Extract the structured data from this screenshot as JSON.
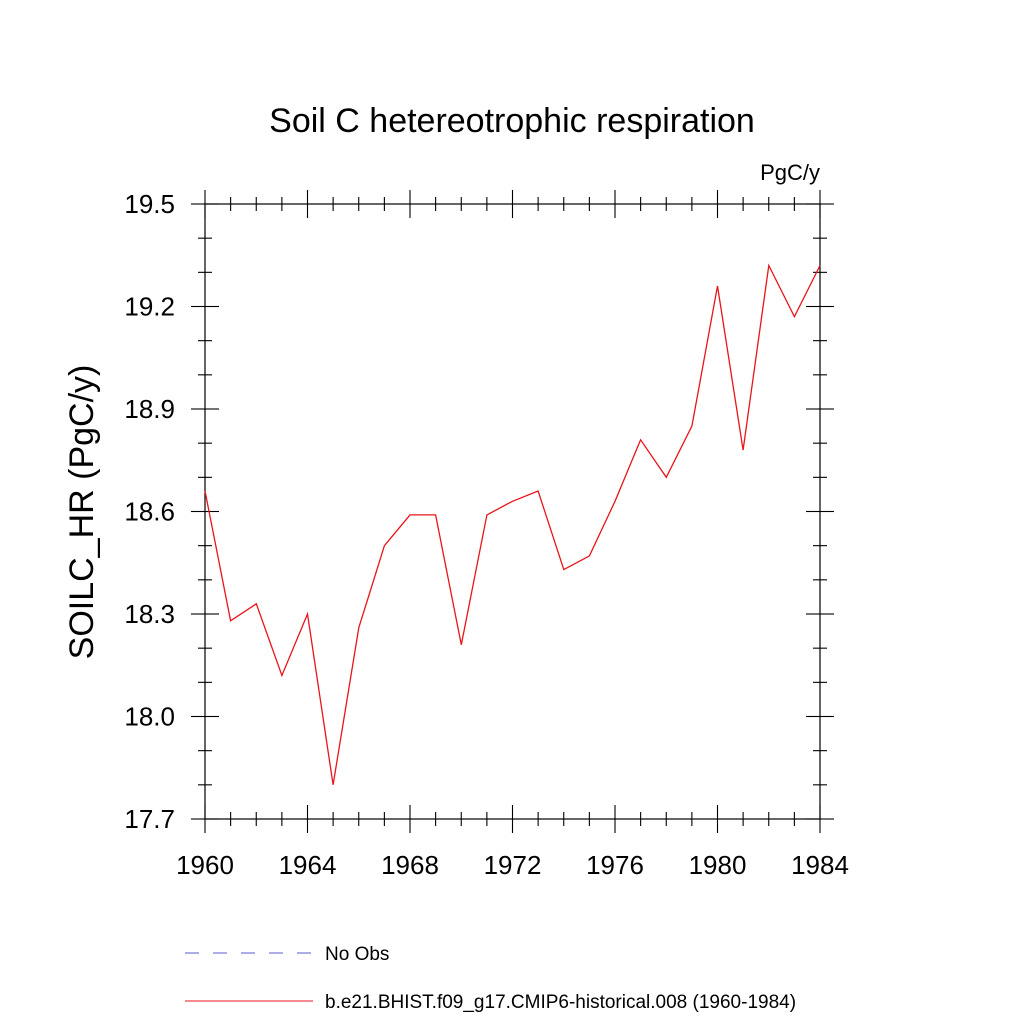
{
  "chart_data": {
    "type": "line",
    "title": "Soil C hetereotrophic respiration",
    "units": "PgC/y",
    "xlabel": "",
    "ylabel": "SOILC_HR  (PgC/y)",
    "xlim": [
      1960,
      1984
    ],
    "ylim": [
      17.7,
      19.5
    ],
    "x_major_ticks": [
      1960,
      1964,
      1968,
      1972,
      1976,
      1980,
      1984
    ],
    "x_minor_step": 1,
    "y_major_ticks": [
      17.7,
      18.0,
      18.3,
      18.6,
      18.9,
      19.2,
      19.5
    ],
    "y_minor_step": 0.1,
    "grid": false,
    "series": [
      {
        "name": "b.e21.BHIST.f09_g17.CMIP6-historical.008 (1960-1984)",
        "color": "#e8151b",
        "style": "solid",
        "x": [
          1960,
          1961,
          1962,
          1963,
          1964,
          1965,
          1966,
          1967,
          1968,
          1969,
          1970,
          1971,
          1972,
          1973,
          1974,
          1975,
          1976,
          1977,
          1978,
          1979,
          1980,
          1981,
          1982,
          1983,
          1984
        ],
        "values": [
          18.66,
          18.28,
          18.33,
          18.12,
          18.3,
          17.8,
          18.26,
          18.5,
          18.59,
          18.59,
          18.21,
          18.59,
          18.63,
          18.66,
          18.43,
          18.47,
          18.63,
          18.81,
          18.7,
          18.85,
          19.26,
          18.78,
          19.32,
          19.17,
          19.32
        ]
      }
    ],
    "legend": [
      {
        "label": "No Obs",
        "color": "#5b5bd6",
        "style": "dashed"
      },
      {
        "label": "b.e21.BHIST.f09_g17.CMIP6-historical.008 (1960-1984)",
        "color": "#e8151b",
        "style": "solid"
      }
    ],
    "legend_position": "bottom"
  }
}
